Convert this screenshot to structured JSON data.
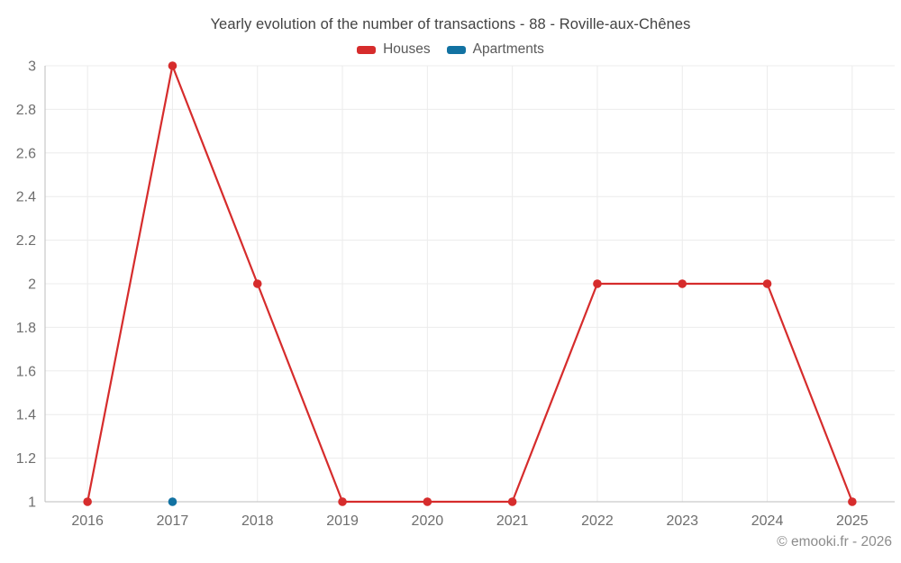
{
  "title": "Yearly evolution of the number of transactions - 88 - Roville-aux-Chênes",
  "legend": [
    {
      "label": "Houses",
      "color": "#d62c2c"
    },
    {
      "label": "Apartments",
      "color": "#1272a2"
    }
  ],
  "footer": "© emooki.fr - 2026",
  "colors": {
    "grid": "#ececec",
    "axis": "#bdbdbd",
    "tick_label": "#6e6e6e"
  },
  "chart_data": {
    "type": "line",
    "title": "Yearly evolution of the number of transactions - 88 - Roville-aux-Chênes",
    "categories": [
      "2016",
      "2017",
      "2018",
      "2019",
      "2020",
      "2021",
      "2022",
      "2023",
      "2024",
      "2025"
    ],
    "series": [
      {
        "name": "Houses",
        "color": "#d62c2c",
        "values": [
          1,
          3,
          2,
          1,
          1,
          1,
          2,
          2,
          2,
          1
        ]
      },
      {
        "name": "Apartments",
        "color": "#1272a2",
        "values": [
          null,
          1,
          null,
          null,
          null,
          null,
          null,
          null,
          null,
          null
        ]
      }
    ],
    "xlabel": "",
    "ylabel": "",
    "ylim": [
      1,
      3
    ],
    "yticks": [
      1,
      1.2,
      1.4,
      1.6,
      1.8,
      2,
      2.2,
      2.4,
      2.6,
      2.8,
      3
    ],
    "grid": true,
    "legend_position": "top"
  }
}
